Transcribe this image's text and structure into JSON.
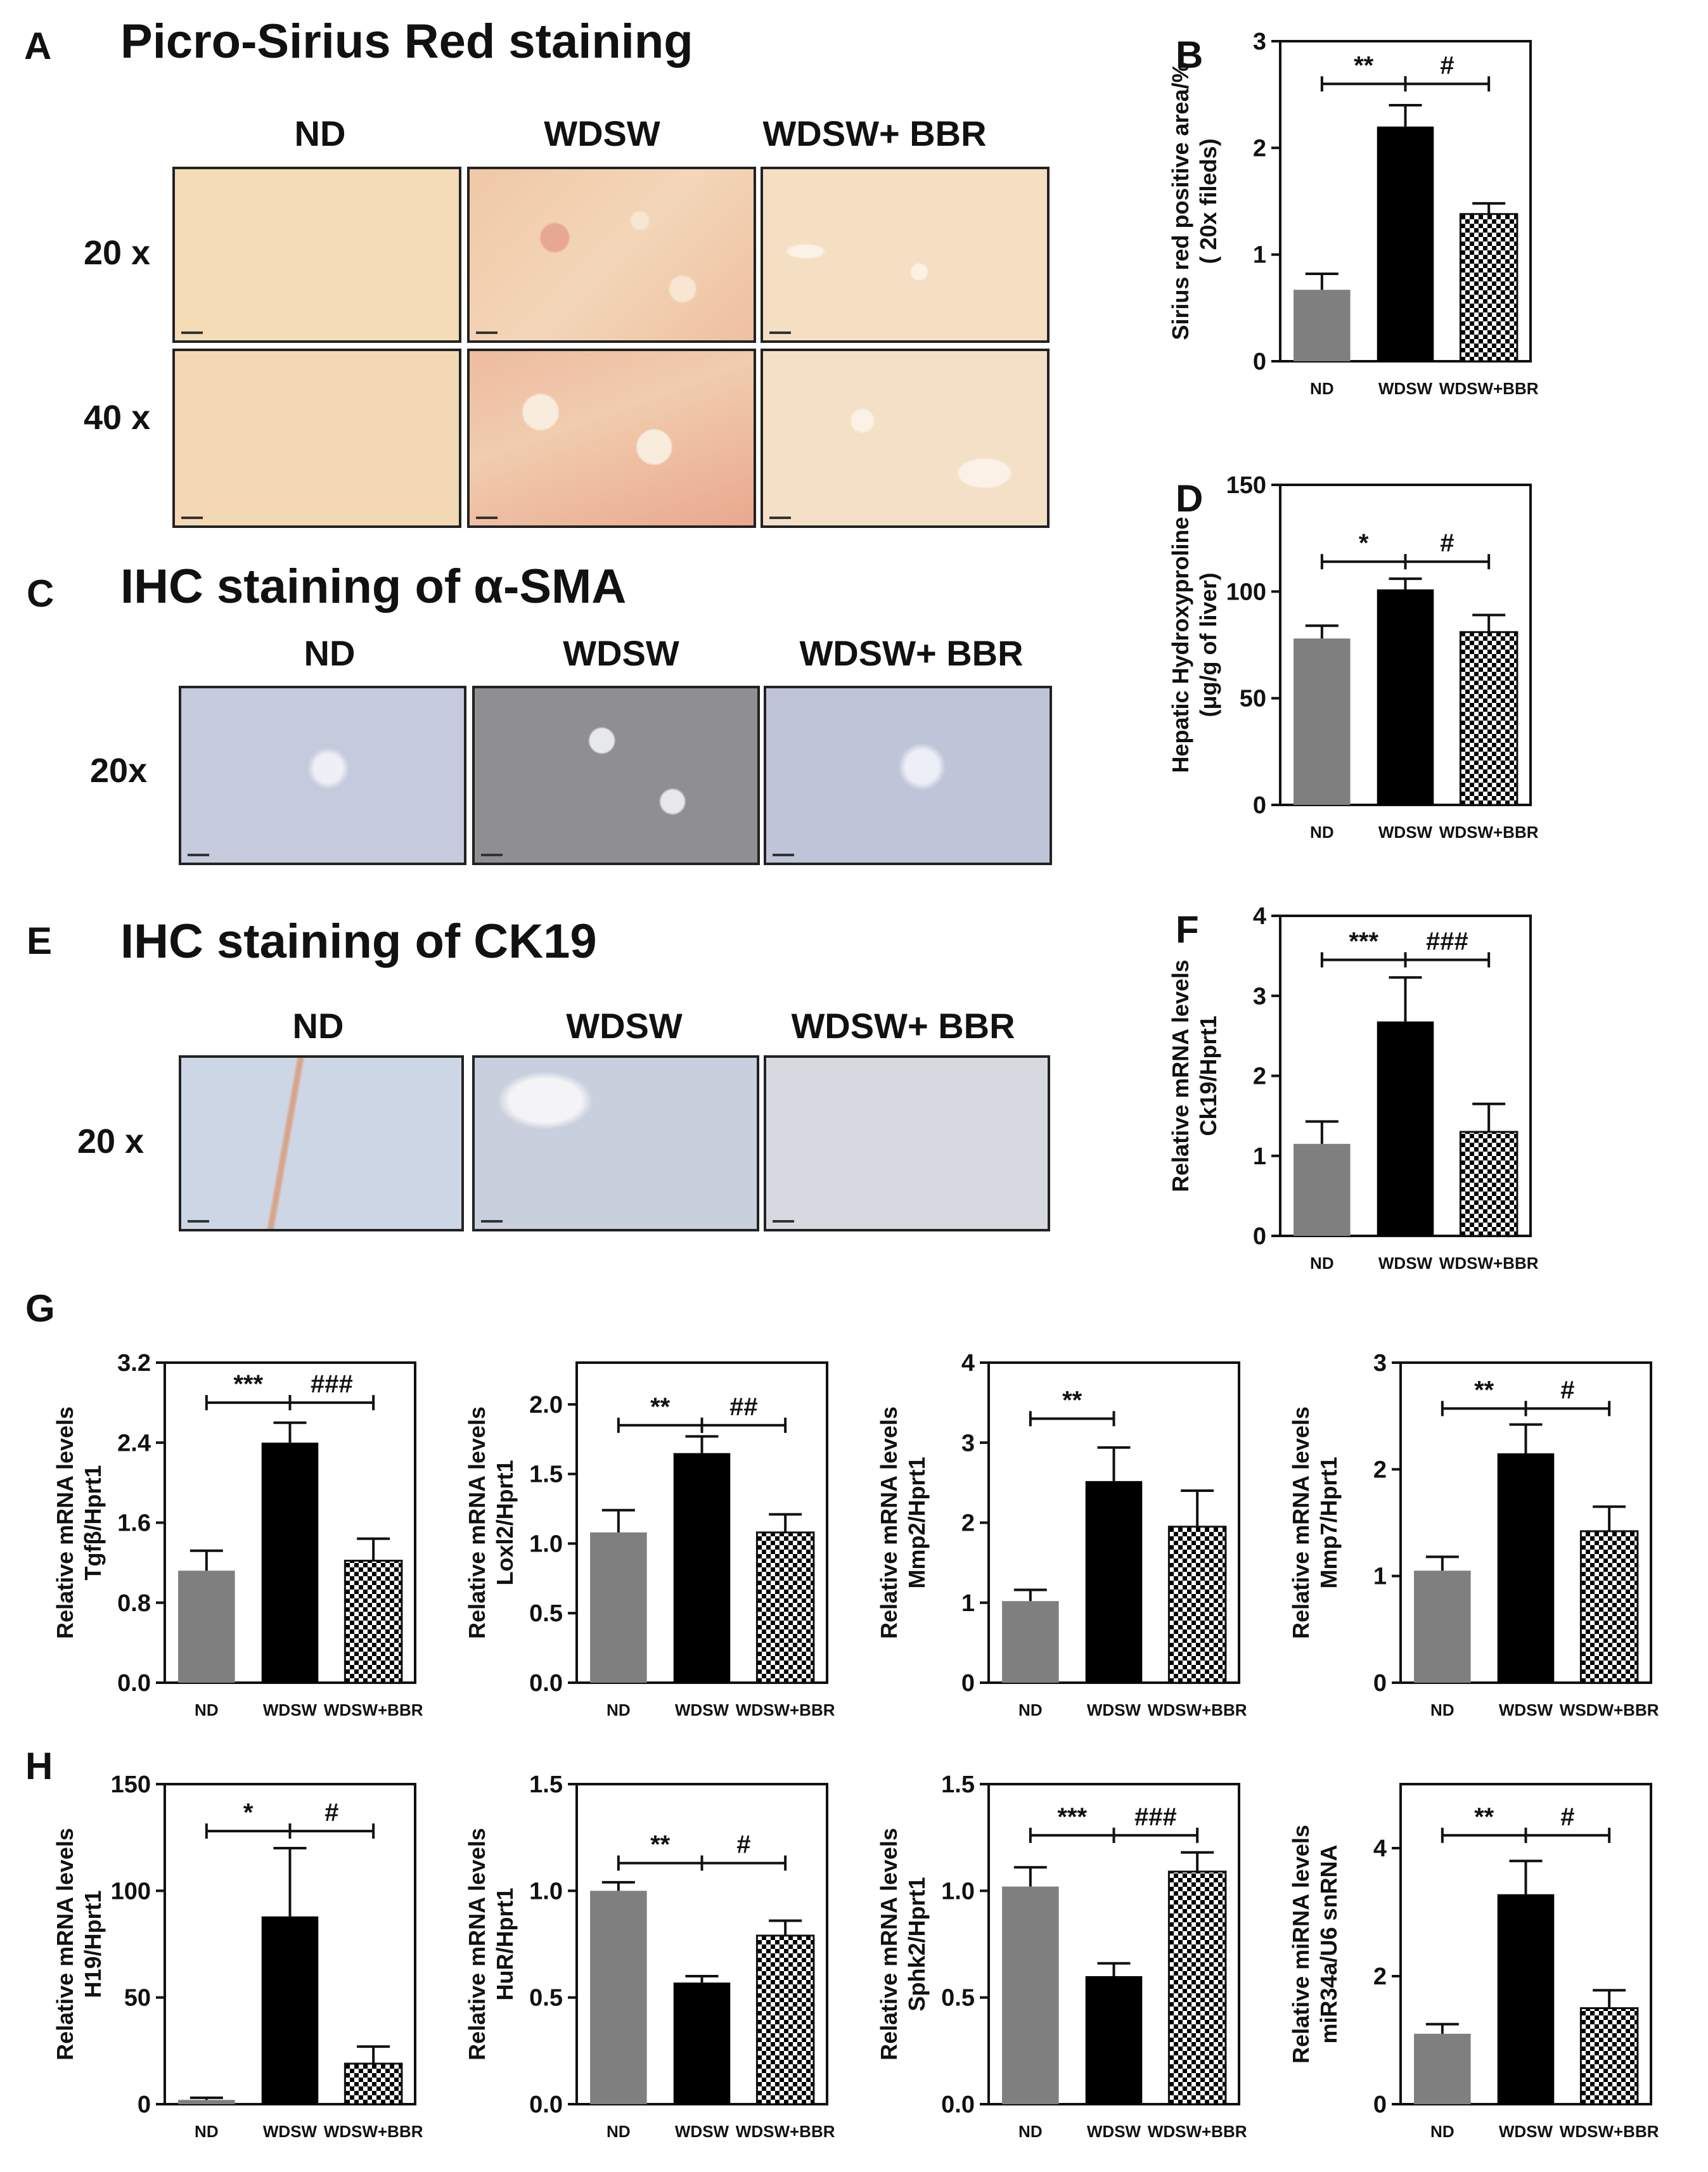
{
  "panels": {
    "A": {
      "letter": "A",
      "title": "Picro-Sirius Red staining",
      "columns": [
        "ND",
        "WDSW",
        "WDSW+ BBR"
      ],
      "rows": [
        "20 x",
        "40 x"
      ]
    },
    "C": {
      "letter": "C",
      "title": "IHC staining of α-SMA",
      "columns": [
        "ND",
        "WDSW",
        "WDSW+ BBR"
      ],
      "rows": [
        "20x"
      ]
    },
    "E": {
      "letter": "E",
      "title": "IHC staining of CK19",
      "columns": [
        "ND",
        "WDSW",
        "WDSW+ BBR"
      ],
      "rows": [
        "20 x"
      ]
    },
    "G": {
      "letter": "G"
    },
    "H": {
      "letter": "H"
    }
  },
  "colors": {
    "nd_bar": "#7f7f7f",
    "wdsw_bar": "#000000",
    "sirius_bg": "#f1d8b2",
    "ihc_bg": "#c9d0e0",
    "ck19_bg": "#cfd8e6"
  },
  "chart_data": [
    {
      "id": "B",
      "type": "bar",
      "letter": "B",
      "categories": [
        "ND",
        "WDSW",
        "WDSW+BBR"
      ],
      "values": [
        0.67,
        2.2,
        1.38
      ],
      "errors": [
        0.15,
        0.2,
        0.1
      ],
      "ylabel": [
        "Sirius red positive area/%",
        "( 20x fileds)"
      ],
      "ylim": [
        0,
        3
      ],
      "yticks": [
        "0",
        "1",
        "2",
        "3"
      ],
      "ytick_values": [
        0,
        1,
        2,
        3
      ],
      "sig": [
        {
          "from": 0,
          "to": 1,
          "label": "**",
          "y": 2.6
        },
        {
          "from": 1,
          "to": 2,
          "label": "#",
          "y": 2.6
        }
      ]
    },
    {
      "id": "D",
      "type": "bar",
      "letter": "D",
      "categories": [
        "ND",
        "WDSW",
        "WDSW+BBR"
      ],
      "values": [
        78,
        101,
        81
      ],
      "errors": [
        6,
        5,
        8
      ],
      "ylabel": [
        "Hepatic Hydroxyproline",
        "(μg/g of liver)"
      ],
      "ylim": [
        0,
        150
      ],
      "yticks": [
        "0",
        "50",
        "100",
        "150"
      ],
      "ytick_values": [
        0,
        50,
        100,
        150
      ],
      "sig": [
        {
          "from": 0,
          "to": 1,
          "label": "*",
          "y": 114
        },
        {
          "from": 1,
          "to": 2,
          "label": "#",
          "y": 114
        }
      ]
    },
    {
      "id": "F",
      "type": "bar",
      "letter": "F",
      "categories": [
        "ND",
        "WDSW",
        "WDSW+BBR"
      ],
      "values": [
        1.15,
        2.68,
        1.3
      ],
      "errors": [
        0.28,
        0.55,
        0.35
      ],
      "ylabel": [
        "Relative mRNA levels",
        "Ck19/Hprt1"
      ],
      "ylim": [
        0,
        4
      ],
      "yticks": [
        "0",
        "1",
        "2",
        "3",
        "4"
      ],
      "ytick_values": [
        0,
        1,
        2,
        3,
        4
      ],
      "sig": [
        {
          "from": 0,
          "to": 1,
          "label": "***",
          "y": 3.45
        },
        {
          "from": 1,
          "to": 2,
          "label": "###",
          "y": 3.45
        }
      ]
    },
    {
      "id": "G1",
      "type": "bar",
      "categories": [
        "ND",
        "WDSW",
        "WDSW+BBR"
      ],
      "values": [
        1.12,
        2.4,
        1.22
      ],
      "errors": [
        0.2,
        0.2,
        0.22
      ],
      "ylabel": [
        "Relative mRNA levels",
        "Tgfβ/Hprt1"
      ],
      "ylim": [
        0,
        3.2
      ],
      "yticks": [
        "0.0",
        "0.8",
        "1.6",
        "2.4",
        "3.2"
      ],
      "ytick_values": [
        0,
        0.8,
        1.6,
        2.4,
        3.2
      ],
      "sig": [
        {
          "from": 0,
          "to": 1,
          "label": "***",
          "y": 2.8
        },
        {
          "from": 1,
          "to": 2,
          "label": "###",
          "y": 2.8
        }
      ]
    },
    {
      "id": "G2",
      "type": "bar",
      "categories": [
        "ND",
        "WDSW",
        "WDSW+BBR"
      ],
      "values": [
        1.08,
        1.65,
        1.08
      ],
      "errors": [
        0.16,
        0.12,
        0.13
      ],
      "ylabel": [
        "Relative mRNA levels",
        "Loxl2/Hprt1"
      ],
      "ylim": [
        0,
        2.3
      ],
      "yticks": [
        "0.0",
        "0.5",
        "1.0",
        "1.5",
        "2.0"
      ],
      "ytick_values": [
        0,
        0.5,
        1.0,
        1.5,
        2.0
      ],
      "sig": [
        {
          "from": 0,
          "to": 1,
          "label": "**",
          "y": 1.85
        },
        {
          "from": 1,
          "to": 2,
          "label": "##",
          "y": 1.85
        }
      ]
    },
    {
      "id": "G3",
      "type": "bar",
      "categories": [
        "ND",
        "WDSW",
        "WDSW+BBR"
      ],
      "values": [
        1.02,
        2.52,
        1.95
      ],
      "errors": [
        0.14,
        0.42,
        0.45
      ],
      "ylabel": [
        "Relative mRNA levels",
        "Mmp2/Hprt1"
      ],
      "ylim": [
        0,
        4
      ],
      "yticks": [
        "0",
        "1",
        "2",
        "3",
        "4"
      ],
      "ytick_values": [
        0,
        1,
        2,
        3,
        4
      ],
      "sig": [
        {
          "from": 0,
          "to": 1,
          "label": "**",
          "y": 3.3
        }
      ]
    },
    {
      "id": "G4",
      "type": "bar",
      "categories": [
        "ND",
        "WDSW",
        "WSDW+BBR"
      ],
      "values": [
        1.05,
        2.15,
        1.42
      ],
      "errors": [
        0.13,
        0.27,
        0.23
      ],
      "ylabel": [
        "Relative mRNA levels",
        "Mmp7/Hprt1"
      ],
      "ylim": [
        0,
        3
      ],
      "yticks": [
        "0",
        "1",
        "2",
        "3"
      ],
      "ytick_values": [
        0,
        1,
        2,
        3
      ],
      "sig": [
        {
          "from": 0,
          "to": 1,
          "label": "**",
          "y": 2.57
        },
        {
          "from": 1,
          "to": 2,
          "label": "#",
          "y": 2.57
        }
      ]
    },
    {
      "id": "H1",
      "type": "bar",
      "categories": [
        "ND",
        "WDSW",
        "WDSW+BBR"
      ],
      "values": [
        2,
        88,
        19
      ],
      "errors": [
        1,
        32,
        8
      ],
      "ylabel": [
        "Relative mRNA levels",
        "H19/Hprt1"
      ],
      "ylim": [
        0,
        150
      ],
      "yticks": [
        "0",
        "50",
        "100",
        "150"
      ],
      "ytick_values": [
        0,
        50,
        100,
        150
      ],
      "sig": [
        {
          "from": 0,
          "to": 1,
          "label": "*",
          "y": 128
        },
        {
          "from": 1,
          "to": 2,
          "label": "#",
          "y": 128
        }
      ]
    },
    {
      "id": "H2",
      "type": "bar",
      "categories": [
        "ND",
        "WDSW",
        "WDSW+BBR"
      ],
      "values": [
        1.0,
        0.57,
        0.79
      ],
      "errors": [
        0.04,
        0.03,
        0.07
      ],
      "ylabel": [
        "Relative mRNA levels",
        "HuR/Hprt1"
      ],
      "ylim": [
        0,
        1.5
      ],
      "yticks": [
        "0.0",
        "0.5",
        "1.0",
        "1.5"
      ],
      "ytick_values": [
        0,
        0.5,
        1.0,
        1.5
      ],
      "sig": [
        {
          "from": 0,
          "to": 1,
          "label": "**",
          "y": 1.13
        },
        {
          "from": 1,
          "to": 2,
          "label": "#",
          "y": 1.13
        }
      ]
    },
    {
      "id": "H3",
      "type": "bar",
      "categories": [
        "ND",
        "WDSW",
        "WDSW+BBR"
      ],
      "values": [
        1.02,
        0.6,
        1.09
      ],
      "errors": [
        0.09,
        0.06,
        0.09
      ],
      "ylabel": [
        "Relative mRNA levels",
        "Sphk2/Hprt1"
      ],
      "ylim": [
        0,
        1.5
      ],
      "yticks": [
        "0.0",
        "0.5",
        "1.0",
        "1.5"
      ],
      "ytick_values": [
        0,
        0.5,
        1.0,
        1.5
      ],
      "sig": [
        {
          "from": 0,
          "to": 1,
          "label": "***",
          "y": 1.26
        },
        {
          "from": 1,
          "to": 2,
          "label": "###",
          "y": 1.26
        }
      ]
    },
    {
      "id": "H4",
      "type": "bar",
      "categories": [
        "ND",
        "WDSW",
        "WDSW+BBR"
      ],
      "values": [
        1.1,
        3.28,
        1.5
      ],
      "errors": [
        0.15,
        0.52,
        0.28
      ],
      "ylabel": [
        "Relative miRNA levels",
        "miR34a/U6 snRNA"
      ],
      "ylim": [
        0,
        5
      ],
      "yticks": [
        "0",
        "2",
        "4"
      ],
      "ytick_values": [
        0,
        2,
        4
      ],
      "sig": [
        {
          "from": 0,
          "to": 1,
          "label": "**",
          "y": 4.2
        },
        {
          "from": 1,
          "to": 2,
          "label": "#",
          "y": 4.2
        }
      ]
    }
  ]
}
